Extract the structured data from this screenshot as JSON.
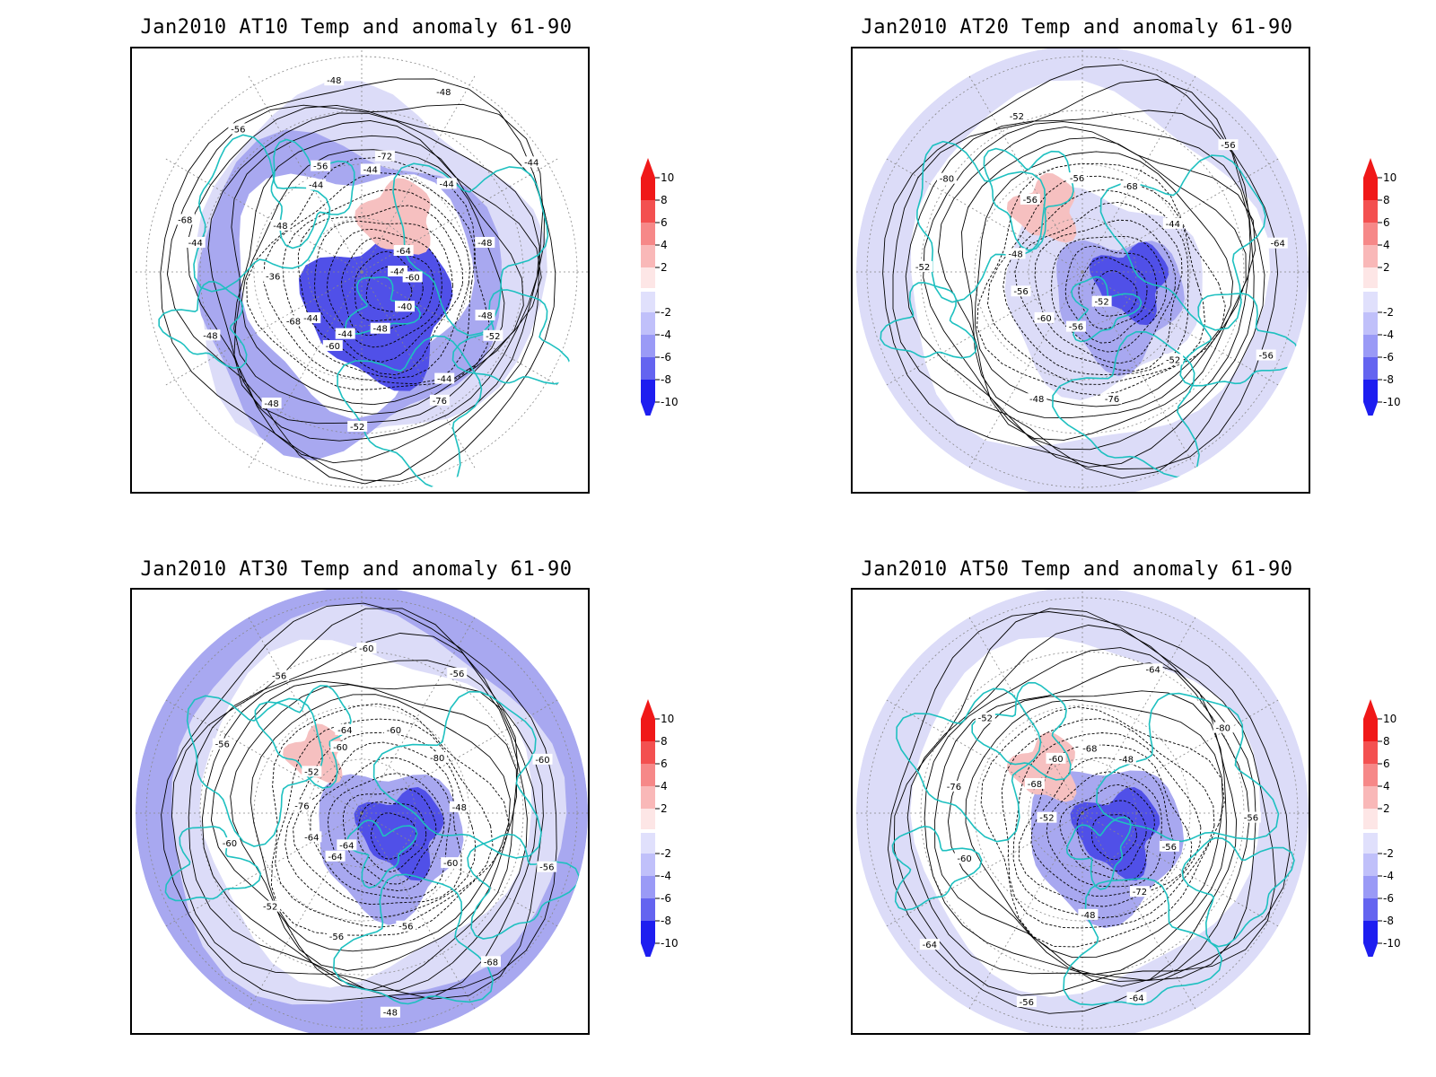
{
  "panels": [
    {
      "title": "Jan2010 AT10 Temp and anomaly 61-90",
      "contour_labels": [
        "-44",
        "-44",
        "-44",
        "-44",
        "-44",
        "-44",
        "-44",
        "-44",
        "-48",
        "-48",
        "-48",
        "-48",
        "-48",
        "-48",
        "-48",
        "-48",
        "-40",
        "-36",
        "-44",
        "-52",
        "-56",
        "-60",
        "-68",
        "-72",
        "-76",
        "-68",
        "-64",
        "-60",
        "-56",
        "-52"
      ]
    },
    {
      "title": "Jan2010 AT20 Temp and anomaly 61-90",
      "contour_labels": [
        "-52",
        "-48",
        "-44",
        "-48",
        "-52",
        "-56",
        "-56",
        "-68",
        "-76",
        "-80",
        "-64",
        "-60",
        "-56",
        "-52",
        "-52",
        "-56",
        "-56",
        "-56"
      ]
    },
    {
      "title": "Jan2010 AT30 Temp and anomaly 61-90",
      "contour_labels": [
        "-64",
        "-60",
        "-60",
        "-60",
        "-56",
        "-48",
        "-52",
        "-48",
        "-52",
        "-60",
        "-68",
        "-76",
        "-80",
        "-56",
        "-56",
        "-56",
        "-64",
        "-60",
        "-56",
        "-56",
        "-60",
        "-64",
        "-64"
      ]
    },
    {
      "title": "Jan2010 AT50 Temp and anomaly 61-90",
      "contour_labels": [
        "-52",
        "-48",
        "-48",
        "-52",
        "-56",
        "-64",
        "-68",
        "-72",
        "-76",
        "-80",
        "-56",
        "-60",
        "-56",
        "-60",
        "-64",
        "-64",
        "-68"
      ]
    }
  ],
  "colorbar": {
    "levels": [
      "10",
      "8",
      "6",
      "4",
      "2",
      "-2",
      "-4",
      "-6",
      "-8",
      "-10"
    ],
    "colors": [
      "#f01818",
      "#f35050",
      "#f68888",
      "#f9b8b8",
      "#fde6e6",
      "#ffffff",
      "#e0e0fc",
      "#c0c0fa",
      "#9a9af6",
      "#6464f0",
      "#1e1ef0"
    ]
  },
  "colors": {
    "coastline": "#1ec0c0",
    "contour": "#000000",
    "grid": "#888888",
    "warm_anomaly": "#f6c0c0",
    "cold_anomaly_light": "#dcdcf8",
    "cold_anomaly_mid": "#a8a8f0",
    "cold_anomaly_strong": "#5050e8"
  }
}
